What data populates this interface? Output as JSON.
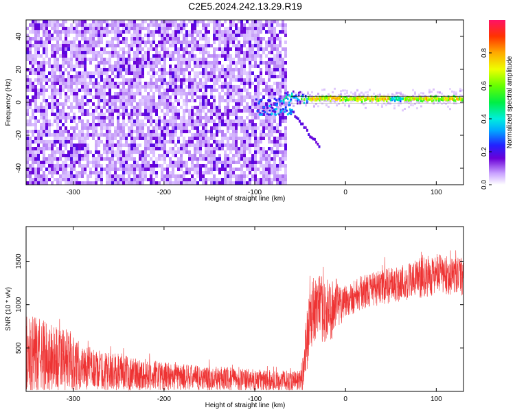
{
  "title": "C2E5.2024.242.13.29.R19",
  "colors": {
    "spectrogram_low": "#6a00d8",
    "line": "#ee3333",
    "axis": "#000000"
  },
  "chart_data": [
    {
      "type": "heatmap",
      "xlabel": "Height of straight line (km)",
      "ylabel": "Frequency (Hz)",
      "xlim": [
        -352,
        130
      ],
      "ylim": [
        -50,
        50
      ],
      "xticks": [
        "-300",
        "-200",
        "-100",
        "0",
        "100"
      ],
      "xtick_values": [
        -300,
        -200,
        -100,
        0,
        100
      ],
      "yticks": [
        "-40",
        "-20",
        "0",
        "20",
        "40"
      ],
      "ytick_values": [
        -40,
        -20,
        0,
        20,
        40
      ],
      "grid": false,
      "colorbar": {
        "label": "Normalized spectral amplitude",
        "ticks": [
          "0.0",
          "0.2",
          "0.4",
          "0.6",
          "0.8"
        ],
        "tick_values": [
          0.0,
          0.2,
          0.4,
          0.6,
          0.8
        ],
        "range": [
          0,
          1
        ]
      },
      "regions": [
        {
          "description": "broadband noise",
          "x_range": [
            -352,
            -66
          ],
          "y_range": [
            -50,
            50
          ],
          "amplitude": 0.1
        },
        {
          "description": "narrow tone",
          "x_range": [
            -66,
            130
          ],
          "frequency": 2,
          "amplitude": 0.75
        },
        {
          "description": "descending branch",
          "x_range": [
            -60,
            -30
          ],
          "frequency_range": [
            -5,
            -27
          ],
          "amplitude": 0.12
        }
      ]
    },
    {
      "type": "line",
      "xlabel": "Height of straight line (km)",
      "ylabel": "SNR (10 * v/v)",
      "xlim": [
        -352,
        130
      ],
      "ylim": [
        0,
        1900
      ],
      "xticks": [
        "-300",
        "-200",
        "-100",
        "0",
        "100"
      ],
      "xtick_values": [
        -300,
        -200,
        -100,
        0,
        100
      ],
      "yticks": [
        "500",
        "1000",
        "1500"
      ],
      "ytick_values": [
        500,
        1000,
        1500
      ],
      "grid": false,
      "series": [
        {
          "x": [
            -350,
            -330,
            -310,
            -290,
            -270,
            -250,
            -230,
            -210,
            -190,
            -170,
            -150,
            -130,
            -110,
            -90,
            -70,
            -50,
            -45,
            -40,
            -35,
            -30,
            -20,
            -10,
            0,
            10,
            20,
            40,
            60,
            80,
            100,
            115,
            130
          ],
          "mean": [
            430,
            400,
            360,
            280,
            240,
            220,
            200,
            185,
            170,
            160,
            150,
            140,
            130,
            125,
            120,
            130,
            350,
            760,
            950,
            980,
            900,
            1000,
            1050,
            1100,
            1150,
            1200,
            1250,
            1300,
            1350,
            1330,
            1320
          ],
          "spread": [
            450,
            420,
            380,
            260,
            230,
            210,
            190,
            170,
            160,
            150,
            145,
            140,
            130,
            125,
            120,
            120,
            350,
            380,
            380,
            360,
            400,
            300,
            200,
            200,
            200,
            200,
            220,
            230,
            240,
            220,
            220
          ]
        }
      ]
    }
  ]
}
